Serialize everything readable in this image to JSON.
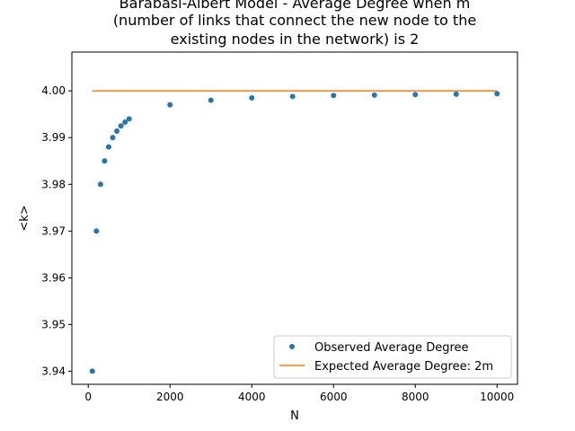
{
  "chart_data": {
    "type": "scatter",
    "title_lines": [
      "Barabasi-Albert Model - Average Degree when m",
      "(number of links that connect the new node to the",
      "existing nodes in the network) is 2"
    ],
    "xlabel": "N",
    "ylabel": "<k>",
    "xlim": [
      -400,
      10500
    ],
    "ylim": [
      3.9372,
      4.0083
    ],
    "x_ticks": [
      0,
      2000,
      4000,
      6000,
      8000,
      10000
    ],
    "x_tick_labels": [
      "0",
      "2000",
      "4000",
      "6000",
      "8000",
      "10000"
    ],
    "y_ticks": [
      3.94,
      3.95,
      3.96,
      3.97,
      3.98,
      3.99,
      4.0
    ],
    "y_tick_labels": [
      "3.94",
      "3.95",
      "3.96",
      "3.97",
      "3.98",
      "3.99",
      "4.00"
    ],
    "grid": false,
    "legend_position": "lower-right",
    "series": [
      {
        "name": "Observed Average Degree",
        "kind": "scatter",
        "color": "#1f77b4",
        "x": [
          100,
          200,
          300,
          400,
          500,
          600,
          700,
          800,
          900,
          1000,
          2000,
          3000,
          4000,
          5000,
          6000,
          7000,
          8000,
          9000,
          10000
        ],
        "y": [
          3.94,
          3.97,
          3.98,
          3.985,
          3.988,
          3.99,
          3.9914,
          3.9925,
          3.9933,
          3.994,
          3.997,
          3.998,
          3.9985,
          3.9988,
          3.999,
          3.9991,
          3.9992,
          3.9993,
          3.9994
        ]
      },
      {
        "name": "Expected Average Degree: 2m",
        "kind": "line",
        "color": "#ff7f0e",
        "x": [
          100,
          10000
        ],
        "y": [
          4.0,
          4.0
        ]
      }
    ]
  }
}
